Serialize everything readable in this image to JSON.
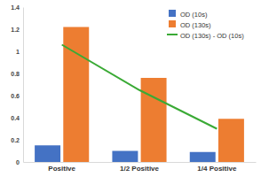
{
  "chart_data": {
    "type": "bar",
    "categories": [
      "Positive",
      "1/2 Positive",
      "1/4 Positive"
    ],
    "series": [
      {
        "name": "OD (10s)",
        "type": "bar",
        "color": "#4472c4",
        "values": [
          0.15,
          0.1,
          0.09
        ]
      },
      {
        "name": "OD (130s)",
        "type": "bar",
        "color": "#ed7d31",
        "values": [
          1.22,
          0.76,
          0.39
        ]
      },
      {
        "name": "OD (130s) - OD (10s)",
        "type": "line",
        "color": "#3aaa35",
        "values": [
          1.06,
          0.65,
          0.3
        ]
      }
    ],
    "ylim": [
      0,
      1.4
    ],
    "yticks": [
      0,
      0.2,
      0.4,
      0.6,
      0.8,
      1,
      1.2,
      1.4
    ],
    "grid": false,
    "legend": "top-right"
  }
}
